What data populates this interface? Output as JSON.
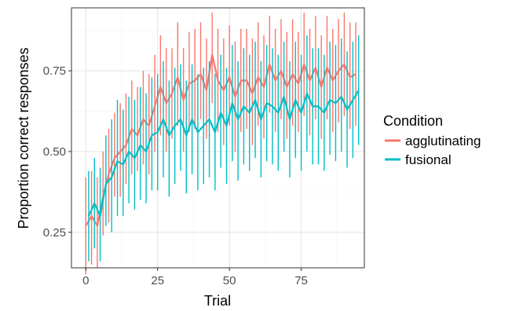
{
  "chart_data": {
    "type": "line",
    "xlabel": "Trial",
    "ylabel": "Proportion correct responses",
    "xlim": [
      -5,
      97
    ],
    "ylim": [
      0.14,
      0.945
    ],
    "x_ticks": [
      0,
      25,
      50,
      75
    ],
    "x_tick_labels": [
      "0",
      "25",
      "50",
      "75"
    ],
    "y_ticks": [
      0.25,
      0.5,
      0.75
    ],
    "y_tick_labels": [
      "0.25",
      "0.50",
      "0.75"
    ],
    "grid": true,
    "legend_title": "Condition",
    "legend_position": "right",
    "series": [
      {
        "name": "agglutinating",
        "color": "#F8766D",
        "x": [
          0,
          2,
          4,
          6,
          8,
          10,
          12,
          14,
          16,
          18,
          20,
          22,
          24,
          26,
          28,
          30,
          32,
          34,
          36,
          38,
          40,
          42,
          44,
          46,
          48,
          50,
          52,
          54,
          56,
          58,
          60,
          62,
          64,
          66,
          68,
          70,
          72,
          74,
          76,
          78,
          80,
          82,
          84,
          86,
          88,
          90,
          92,
          94
        ],
        "mean": [
          0.27,
          0.3,
          0.27,
          0.36,
          0.43,
          0.48,
          0.5,
          0.52,
          0.57,
          0.55,
          0.6,
          0.58,
          0.64,
          0.7,
          0.65,
          0.68,
          0.73,
          0.66,
          0.71,
          0.72,
          0.74,
          0.69,
          0.8,
          0.72,
          0.69,
          0.73,
          0.67,
          0.72,
          0.72,
          0.68,
          0.73,
          0.7,
          0.77,
          0.72,
          0.75,
          0.7,
          0.74,
          0.71,
          0.77,
          0.72,
          0.76,
          0.7,
          0.76,
          0.72,
          0.75,
          0.77,
          0.73,
          0.74
        ],
        "lower": [
          0.12,
          0.15,
          0.14,
          0.24,
          0.28,
          0.36,
          0.36,
          0.4,
          0.43,
          0.44,
          0.46,
          0.43,
          0.5,
          0.55,
          0.5,
          0.54,
          0.58,
          0.5,
          0.56,
          0.57,
          0.6,
          0.54,
          0.65,
          0.56,
          0.52,
          0.58,
          0.5,
          0.56,
          0.57,
          0.52,
          0.58,
          0.54,
          0.62,
          0.56,
          0.6,
          0.54,
          0.58,
          0.56,
          0.61,
          0.55,
          0.6,
          0.54,
          0.6,
          0.56,
          0.59,
          0.61,
          0.57,
          0.58
        ],
        "upper": [
          0.42,
          0.44,
          0.42,
          0.5,
          0.57,
          0.62,
          0.65,
          0.68,
          0.72,
          0.7,
          0.75,
          0.74,
          0.8,
          0.86,
          0.82,
          0.82,
          0.9,
          0.82,
          0.87,
          0.88,
          0.9,
          0.85,
          0.93,
          0.88,
          0.85,
          0.89,
          0.84,
          0.88,
          0.88,
          0.85,
          0.9,
          0.86,
          0.92,
          0.88,
          0.91,
          0.87,
          0.91,
          0.87,
          0.93,
          0.88,
          0.92,
          0.86,
          0.92,
          0.88,
          0.91,
          0.93,
          0.9,
          0.9
        ]
      },
      {
        "name": "fusional",
        "color": "#00BFC4",
        "x": [
          1,
          3,
          5,
          7,
          9,
          11,
          13,
          15,
          17,
          19,
          21,
          23,
          25,
          27,
          29,
          31,
          33,
          35,
          37,
          39,
          41,
          43,
          45,
          47,
          49,
          51,
          53,
          55,
          57,
          59,
          61,
          63,
          65,
          67,
          69,
          71,
          73,
          75,
          77,
          79,
          81,
          83,
          85,
          87,
          89,
          91,
          93,
          95
        ],
        "mean": [
          0.3,
          0.34,
          0.3,
          0.4,
          0.42,
          0.47,
          0.46,
          0.5,
          0.48,
          0.52,
          0.5,
          0.55,
          0.56,
          0.6,
          0.55,
          0.58,
          0.6,
          0.55,
          0.6,
          0.56,
          0.58,
          0.6,
          0.56,
          0.62,
          0.58,
          0.65,
          0.6,
          0.64,
          0.62,
          0.66,
          0.6,
          0.65,
          0.64,
          0.62,
          0.67,
          0.6,
          0.66,
          0.62,
          0.68,
          0.64,
          0.64,
          0.62,
          0.66,
          0.65,
          0.67,
          0.63,
          0.66,
          0.69
        ],
        "lower": [
          0.16,
          0.2,
          0.16,
          0.27,
          0.25,
          0.3,
          0.3,
          0.34,
          0.32,
          0.35,
          0.34,
          0.38,
          0.38,
          0.42,
          0.36,
          0.4,
          0.44,
          0.37,
          0.43,
          0.38,
          0.4,
          0.42,
          0.38,
          0.45,
          0.4,
          0.47,
          0.41,
          0.46,
          0.44,
          0.48,
          0.42,
          0.47,
          0.46,
          0.44,
          0.5,
          0.42,
          0.48,
          0.44,
          0.5,
          0.46,
          0.46,
          0.44,
          0.49,
          0.47,
          0.5,
          0.45,
          0.48,
          0.52
        ],
        "upper": [
          0.44,
          0.48,
          0.45,
          0.55,
          0.6,
          0.66,
          0.63,
          0.67,
          0.66,
          0.7,
          0.68,
          0.73,
          0.74,
          0.78,
          0.72,
          0.76,
          0.77,
          0.72,
          0.77,
          0.74,
          0.76,
          0.78,
          0.74,
          0.8,
          0.76,
          0.83,
          0.78,
          0.82,
          0.8,
          0.84,
          0.78,
          0.83,
          0.82,
          0.8,
          0.84,
          0.78,
          0.84,
          0.8,
          0.86,
          0.82,
          0.82,
          0.8,
          0.84,
          0.83,
          0.85,
          0.81,
          0.84,
          0.86
        ]
      }
    ]
  }
}
